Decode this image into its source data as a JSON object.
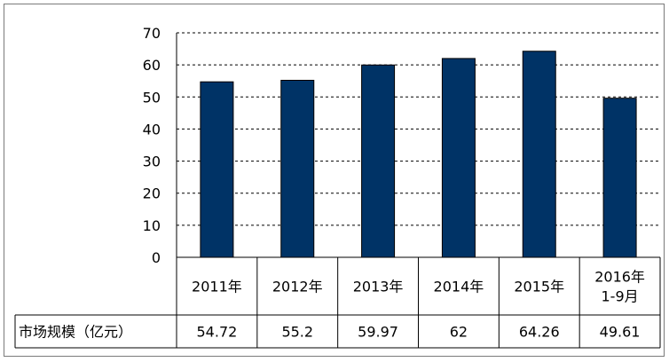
{
  "chart_data": {
    "type": "bar",
    "categories": [
      "2011年",
      "2012年",
      "2013年",
      "2014年",
      "2015年",
      "2016年\n1-9月"
    ],
    "series": [
      {
        "name": "市场规模（亿元）",
        "values": [
          54.72,
          55.2,
          59.97,
          62,
          64.26,
          49.61
        ]
      }
    ],
    "data_labels": [
      "54.72",
      "55.2",
      "59.97",
      "62",
      "64.26",
      "49.61"
    ],
    "ylim": [
      0,
      70
    ],
    "yticks": [
      0,
      10,
      20,
      30,
      40,
      50,
      60,
      70
    ],
    "grid": "horizontal-dashed",
    "data_table": true,
    "colors": {
      "bar": "#003366",
      "grid": "#000000",
      "border": "#7a7a7a"
    }
  }
}
